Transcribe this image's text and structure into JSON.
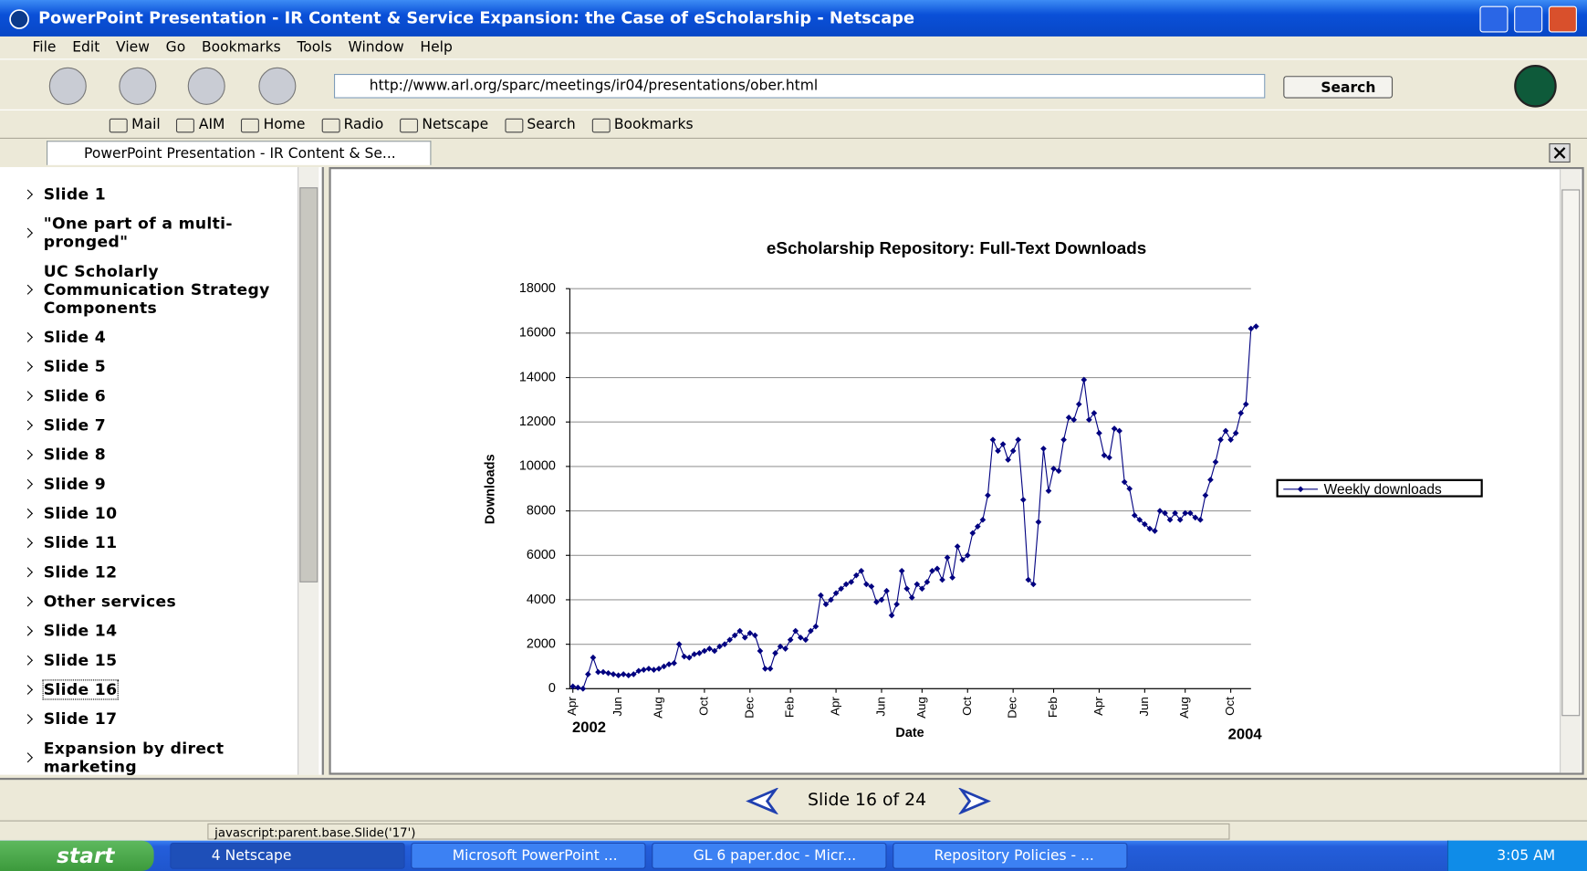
{
  "window": {
    "title": "PowerPoint Presentation - IR Content & Service Expansion: the Case of eScholarship - Netscape"
  },
  "menu": [
    "File",
    "Edit",
    "View",
    "Go",
    "Bookmarks",
    "Tools",
    "Window",
    "Help"
  ],
  "navigation": {
    "url": "http://www.arl.org/sparc/meetings/ir04/presentations/ober.html",
    "search_button": "Search"
  },
  "personal_toolbar": [
    "Mail",
    "AIM",
    "Home",
    "Radio",
    "Netscape",
    "Search",
    "Bookmarks"
  ],
  "tab": {
    "title": "PowerPoint Presentation - IR Content & Se..."
  },
  "slides": {
    "items": [
      "Slide 1",
      "\"One part of a multi-pronged\"",
      "UC Scholarly Communication Strategy Components",
      "Slide 4",
      "Slide 5",
      "Slide 6",
      "Slide 7",
      "Slide 8",
      "Slide 9",
      "Slide 10",
      "Slide 11",
      "Slide 12",
      "Other services",
      "Slide 14",
      "Slide 15",
      "Slide 16",
      "Slide 17",
      "Expansion by direct marketing"
    ],
    "selected": 15
  },
  "chart_data": {
    "type": "line",
    "title": "eScholarship Repository: Full-Text Downloads",
    "x_label": "Date",
    "y_label": "Downloads",
    "annotations": [
      "2002",
      "2004"
    ],
    "categories": [
      "Apr",
      null,
      null,
      null,
      null,
      null,
      null,
      null,
      null,
      "Jun",
      null,
      null,
      null,
      null,
      null,
      null,
      null,
      "Aug",
      null,
      null,
      null,
      null,
      null,
      null,
      null,
      null,
      "Oct",
      null,
      null,
      null,
      null,
      null,
      null,
      null,
      null,
      "Dec",
      null,
      null,
      null,
      null,
      null,
      null,
      null,
      "Feb",
      null,
      null,
      null,
      null,
      null,
      null,
      null,
      null,
      "Apr",
      null,
      null,
      null,
      null,
      null,
      null,
      null,
      null,
      "Jun",
      null,
      null,
      null,
      null,
      null,
      null,
      null,
      "Aug",
      null,
      null,
      null,
      null,
      null,
      null,
      null,
      null,
      "Oct",
      null,
      null,
      null,
      null,
      null,
      null,
      null,
      null,
      "Dec",
      null,
      null,
      null,
      null,
      null,
      null,
      null,
      "Feb",
      null,
      null,
      null,
      null,
      null,
      null,
      null,
      null,
      "Apr",
      null,
      null,
      null,
      null,
      null,
      null,
      null,
      null,
      "Jun",
      null,
      null,
      null,
      null,
      null,
      null,
      null,
      "Aug",
      null,
      null,
      null,
      null,
      null,
      null,
      null,
      null,
      "Oct",
      null,
      null,
      null,
      null,
      null
    ],
    "series": [
      {
        "name": "Weekly downloads",
        "color": "#000080",
        "values": [
          100,
          50,
          0,
          650,
          1400,
          750,
          750,
          700,
          650,
          600,
          650,
          600,
          650,
          800,
          850,
          900,
          850,
          900,
          1000,
          1100,
          1150,
          2000,
          1450,
          1400,
          1550,
          1600,
          1700,
          1800,
          1700,
          1900,
          2000,
          2200,
          2400,
          2600,
          2300,
          2500,
          2400,
          1700,
          900,
          900,
          1600,
          1900,
          1800,
          2200,
          2600,
          2300,
          2200,
          2600,
          2800,
          4200,
          3800,
          4000,
          4300,
          4500,
          4700,
          4800,
          5100,
          5300,
          4700,
          4600,
          3900,
          4000,
          4400,
          3300,
          3800,
          5300,
          4500,
          4100,
          4700,
          4500,
          4800,
          5300,
          5400,
          4900,
          5900,
          5000,
          6400,
          5800,
          6000,
          7000,
          7300,
          7600,
          8700,
          11200,
          10700,
          11000,
          10300,
          10700,
          11200,
          8500,
          4900,
          4700,
          7500,
          10800,
          8900,
          9900,
          9800,
          11200,
          12200,
          12100,
          12800,
          13900,
          12100,
          12400,
          11500,
          10500,
          10400,
          11700,
          11600,
          9300,
          9000,
          7800,
          7600,
          7400,
          7200,
          7100,
          8000,
          7900,
          7600,
          7900,
          7600,
          7900,
          7900,
          7700,
          7600,
          8700,
          9400,
          10200,
          11200,
          11600,
          11200,
          11500,
          12400,
          12800,
          16200,
          16300
        ]
      }
    ],
    "ylim": [
      0,
      18000
    ],
    "yticks": [
      0,
      2000,
      4000,
      6000,
      8000,
      10000,
      12000,
      14000,
      16000,
      18000
    ],
    "grid": true,
    "legend": "right"
  },
  "slide_nav": "Slide 16 of 24",
  "status": "javascript:parent.base.Slide('17')",
  "taskbar": {
    "start": "start",
    "items": [
      "4 Netscape",
      "Microsoft PowerPoint ...",
      "GL 6 paper.doc - Micr...",
      "Repository Policies - ..."
    ],
    "clock": "3:05 AM"
  }
}
